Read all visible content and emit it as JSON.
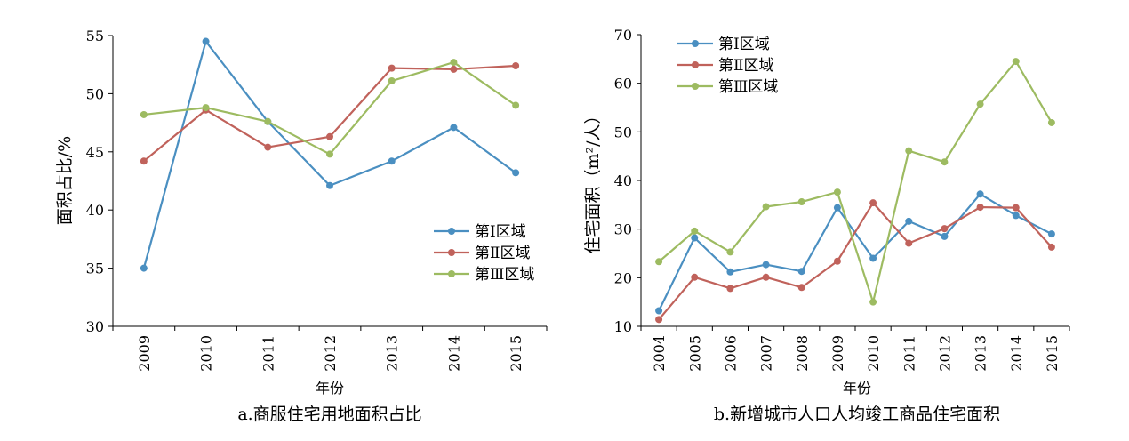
{
  "chart_data": [
    {
      "type": "line",
      "caption": "a.商服住宅用地面积占比",
      "xlabel": "年份",
      "ylabel": "面积占比/%",
      "categories": [
        "2009",
        "2010",
        "2011",
        "2012",
        "2013",
        "2014",
        "2015"
      ],
      "ylim": [
        30,
        55
      ],
      "yticks": [
        30,
        35,
        40,
        45,
        50,
        55
      ],
      "legend_position": "bottom-right",
      "grid": false,
      "series": [
        {
          "name": "第Ⅰ区域",
          "color": "#4a8fc1",
          "values": [
            35.0,
            54.5,
            47.6,
            42.1,
            44.2,
            47.1,
            43.2
          ]
        },
        {
          "name": "第Ⅱ区域",
          "color": "#c0625b",
          "values": [
            44.2,
            48.6,
            45.4,
            46.3,
            52.2,
            52.1,
            52.4
          ]
        },
        {
          "name": "第Ⅲ区域",
          "color": "#9dbb61",
          "values": [
            48.2,
            48.8,
            47.6,
            44.8,
            51.1,
            52.7,
            49.0
          ]
        }
      ]
    },
    {
      "type": "line",
      "caption": "b.新增城市人口人均竣工商品住宅面积",
      "xlabel": "年份",
      "ylabel": "住宅面积（m²/人）",
      "categories": [
        "2004",
        "2005",
        "2006",
        "2007",
        "2008",
        "2009",
        "2010",
        "2011",
        "2012",
        "2013",
        "2014",
        "2015"
      ],
      "ylim": [
        10,
        70
      ],
      "yticks": [
        10,
        20,
        30,
        40,
        50,
        60,
        70
      ],
      "legend_position": "top-left",
      "grid": false,
      "series": [
        {
          "name": "第Ⅰ区域",
          "color": "#4a8fc1",
          "values": [
            13.2,
            28.2,
            21.2,
            22.7,
            21.3,
            34.4,
            24.0,
            31.6,
            28.5,
            37.2,
            32.8,
            29.0
          ]
        },
        {
          "name": "第Ⅱ区域",
          "color": "#c0625b",
          "values": [
            11.4,
            20.1,
            17.8,
            20.1,
            18.0,
            23.4,
            35.4,
            27.1,
            30.1,
            34.5,
            34.4,
            26.3
          ]
        },
        {
          "name": "第Ⅲ区域",
          "color": "#9dbb61",
          "values": [
            23.3,
            29.6,
            25.3,
            34.6,
            35.6,
            37.6,
            15.0,
            46.1,
            43.8,
            55.7,
            64.5,
            51.9
          ]
        }
      ]
    }
  ]
}
